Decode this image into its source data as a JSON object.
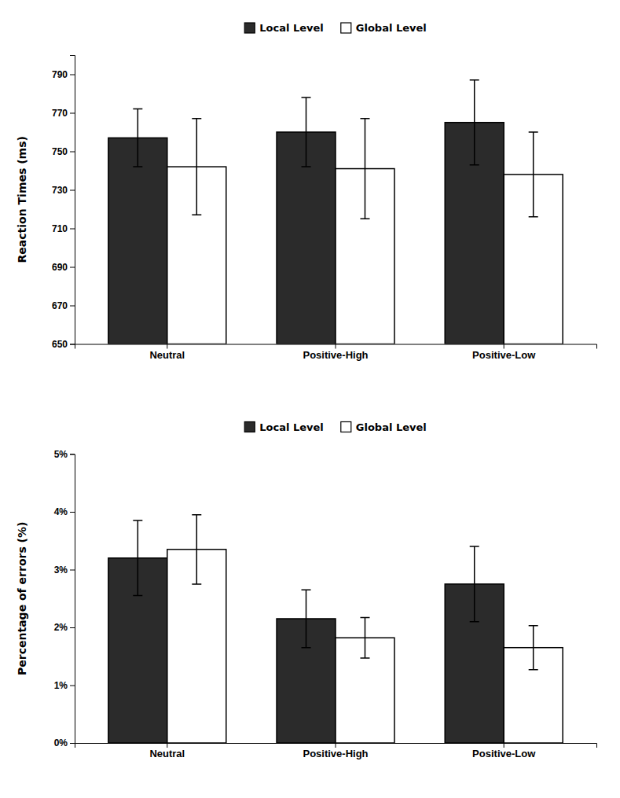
{
  "chart_data": [
    {
      "type": "bar",
      "categories": [
        "Neutral",
        "Positive-High",
        "Positive-Low"
      ],
      "series": [
        {
          "name": "Local Level",
          "color": "#2b2b2b",
          "values": [
            757,
            760,
            765
          ],
          "errors": [
            15,
            18,
            22
          ]
        },
        {
          "name": "Global Level",
          "color": "#ffffff",
          "values": [
            742,
            741,
            738
          ],
          "errors": [
            25,
            26,
            22
          ]
        }
      ],
      "y_label": "Reaction Times (ms)",
      "ylim": [
        650,
        800
      ],
      "yticks": [
        650,
        670,
        690,
        710,
        730,
        750,
        770,
        790
      ],
      "legend": "top",
      "grid": false
    },
    {
      "type": "bar",
      "categories": [
        "Neutral",
        "Positive-High",
        "Positive-Low"
      ],
      "series": [
        {
          "name": "Local Level",
          "color": "#2b2b2b",
          "values": [
            0.032,
            0.0215,
            0.0275
          ],
          "errors": [
            0.0065,
            0.005,
            0.0065
          ]
        },
        {
          "name": "Global Level",
          "color": "#ffffff",
          "values": [
            0.0335,
            0.0182,
            0.0165
          ],
          "errors": [
            0.006,
            0.0035,
            0.0038
          ]
        }
      ],
      "y_label": "Percentage of errors (%)",
      "ylim": [
        0,
        0.05
      ],
      "yticks": [
        {
          "value": 0.0,
          "label": "0%"
        },
        {
          "value": 0.01,
          "label": "1%"
        },
        {
          "value": 0.02,
          "label": "2%"
        },
        {
          "value": 0.03,
          "label": "3%"
        },
        {
          "value": 0.04,
          "label": "4%"
        },
        {
          "value": 0.05,
          "label": "5%"
        }
      ],
      "legend": "top",
      "grid": false
    }
  ]
}
